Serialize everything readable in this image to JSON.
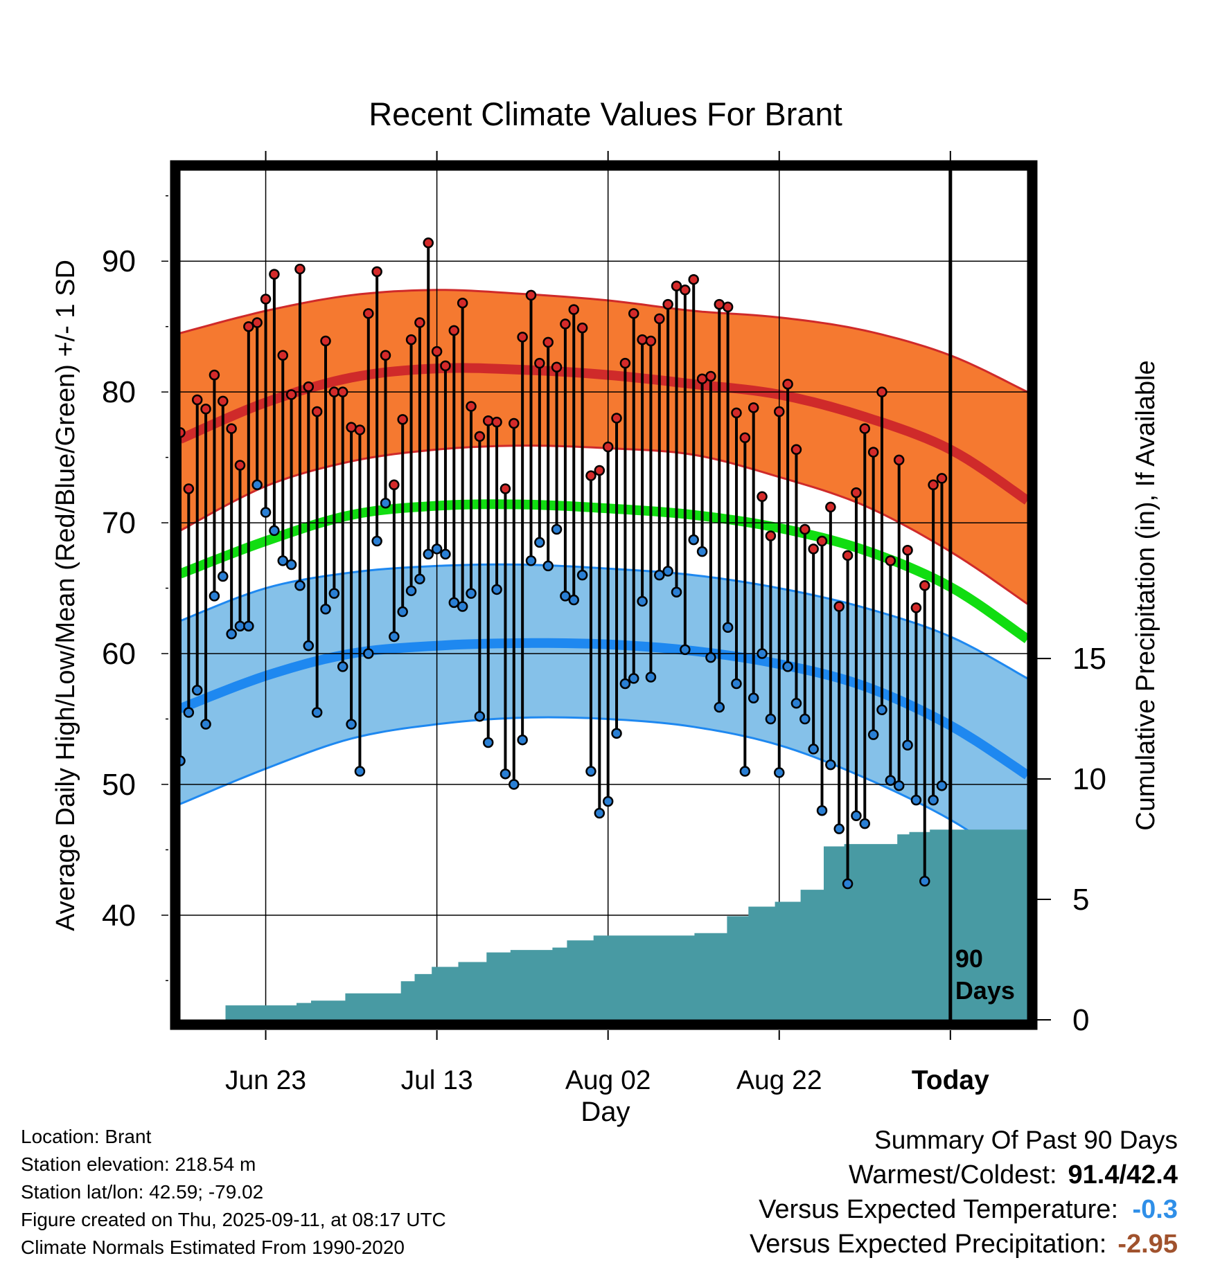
{
  "chart_data": {
    "type": "line",
    "title": "Recent Climate Values For Brant",
    "xlabel": "Day",
    "ylabel_left": "Average Daily High/Low/Mean (Red/Blue/Green) +/- 1 SD",
    "ylabel_right": "Cumulative Precipitation (in), If Available",
    "x_tick_labels": [
      "Jun 23",
      "Jul 13",
      "Aug 02",
      "Aug 22",
      "Today"
    ],
    "x_tick_days": [
      10,
      30,
      50,
      70,
      90
    ],
    "x_range": [
      0,
      99
    ],
    "ylim": [
      32,
      97
    ],
    "y_ticks": [
      40,
      50,
      60,
      70,
      80,
      90
    ],
    "y_right_ticks": [
      0,
      5,
      10,
      15
    ],
    "y_right_range": [
      0,
      35.3
    ],
    "today_marker": "90\nDays",
    "grid": true,
    "normals": {
      "days": [
        0,
        10,
        20,
        30,
        40,
        50,
        60,
        70,
        80,
        90,
        99
      ],
      "high_mean": [
        76.4,
        79.2,
        81.1,
        81.8,
        81.7,
        81.3,
        80.6,
        79.8,
        78.1,
        75.6,
        71.7
      ],
      "high_upper": [
        84.5,
        86.2,
        87.4,
        87.8,
        87.5,
        87.0,
        86.2,
        85.7,
        84.7,
        82.8,
        80.0
      ],
      "high_lower": [
        69.4,
        72.8,
        74.7,
        75.6,
        75.9,
        75.7,
        75.2,
        73.5,
        71.3,
        67.8,
        63.8
      ],
      "mean": [
        66.1,
        68.6,
        70.6,
        71.3,
        71.4,
        71.1,
        70.6,
        69.6,
        67.9,
        65.1,
        61.1
      ],
      "low_mean": [
        55.8,
        58.3,
        60.0,
        60.6,
        60.8,
        60.7,
        60.2,
        59.2,
        57.5,
        54.5,
        50.7
      ],
      "low_upper": [
        62.5,
        65.0,
        66.2,
        66.7,
        66.8,
        66.5,
        66.0,
        65.0,
        63.5,
        61.3,
        58.1
      ],
      "low_lower": [
        48.5,
        51.2,
        53.5,
        54.6,
        55.1,
        55.0,
        54.4,
        53.0,
        50.5,
        47.3,
        43.4
      ]
    },
    "series": [
      {
        "name": "High",
        "color": "#d42a2a",
        "values": [
          76.9,
          72.6,
          79.4,
          78.7,
          81.3,
          79.3,
          77.2,
          74.4,
          85.0,
          85.3,
          87.1,
          89.0,
          82.8,
          79.8,
          89.4,
          80.4,
          78.5,
          83.9,
          80.0,
          80.0,
          77.3,
          77.1,
          86.0,
          89.2,
          82.8,
          72.9,
          77.9,
          84.0,
          85.3,
          91.4,
          83.1,
          82.0,
          84.7,
          86.8,
          78.9,
          76.6,
          77.8,
          77.7,
          72.6,
          77.6,
          84.2,
          87.4,
          82.2,
          83.8,
          81.9,
          85.2,
          86.3,
          84.9,
          73.6,
          74.0,
          75.8,
          78.0,
          82.2,
          86.0,
          84.0,
          83.9,
          85.6,
          86.7,
          88.1,
          87.8,
          88.6,
          81.0,
          81.2,
          86.7,
          86.5,
          78.4,
          76.5,
          78.8,
          72.0,
          69.0,
          78.5,
          80.6,
          75.6,
          69.5,
          68.0,
          68.6,
          71.2,
          63.6,
          67.5,
          72.3,
          77.2,
          75.4,
          80.0,
          67.1,
          74.8,
          67.9,
          63.5,
          65.2,
          72.9,
          73.4
        ]
      },
      {
        "name": "Low",
        "color": "#2a7fd4",
        "values": [
          51.8,
          55.5,
          57.2,
          54.6,
          64.4,
          65.9,
          61.5,
          62.1,
          62.1,
          72.9,
          70.8,
          69.4,
          67.1,
          66.8,
          65.2,
          60.6,
          55.5,
          63.4,
          64.6,
          59.0,
          54.6,
          51.0,
          60.0,
          68.6,
          71.5,
          61.3,
          63.2,
          64.8,
          65.7,
          67.6,
          68.0,
          67.6,
          63.9,
          63.6,
          64.6,
          55.2,
          53.2,
          64.9,
          50.8,
          50.0,
          53.4,
          67.1,
          68.5,
          66.7,
          69.5,
          64.4,
          64.1,
          66.0,
          51.0,
          47.8,
          48.7,
          53.9,
          57.7,
          58.1,
          64.0,
          58.2,
          66.0,
          66.3,
          64.7,
          60.3,
          68.7,
          67.8,
          59.7,
          55.9,
          62.0,
          57.7,
          51.0,
          56.6,
          60.0,
          55.0,
          50.9,
          59.0,
          56.2,
          55.0,
          52.7,
          48.0,
          51.5,
          46.6,
          42.4,
          47.6,
          47.0,
          53.8,
          55.7,
          50.3,
          49.9,
          53.0,
          48.8,
          42.6,
          48.8,
          49.9
        ]
      },
      {
        "name": "Cumulative Precipitation",
        "color": "#489aa3",
        "step_days": [
          0,
          5.3,
          13.6,
          15.3,
          19.3,
          25.8,
          27.4,
          29.4,
          32.5,
          35.8,
          38.6,
          43.5,
          45.2,
          48.3,
          60.1,
          63.9,
          66.4,
          69.5,
          72.5,
          75.2,
          77.6,
          83.8,
          85.2,
          87.6,
          99
        ],
        "step_values": [
          0,
          0.6,
          0.7,
          0.8,
          1.1,
          1.6,
          1.9,
          2.2,
          2.4,
          2.8,
          2.9,
          3.0,
          3.3,
          3.5,
          3.6,
          4.3,
          4.7,
          4.9,
          5.4,
          7.2,
          7.3,
          7.7,
          7.8,
          7.9,
          7.9
        ]
      }
    ]
  },
  "info": {
    "location": "Location: Brant",
    "elevation": "Station elevation: 218.54 m",
    "latlon": "Station lat/lon: 42.59; -79.02",
    "created": "Figure created on Thu, 2025-09-11, at 08:17 UTC",
    "normals_note": "Climate Normals Estimated From 1990-2020"
  },
  "summary": {
    "heading": "Summary Of Past 90 Days",
    "warm_cold_label": "Warmest/Coldest:",
    "warm_cold_value": "91.4/42.4",
    "temp_label": "Versus Expected Temperature:",
    "temp_value": "-0.3",
    "temp_color": "#2f8fe8",
    "precip_label": "Versus Expected Precipitation:",
    "precip_value": "-2.95",
    "precip_color": "#a0522d"
  },
  "colors": {
    "high_band": "#f57930",
    "high_line": "#cf2a2a",
    "mean_line": "#11dd11",
    "low_band": "#85c1e9",
    "low_line": "#1e88f0",
    "precip_fill": "#489aa3"
  }
}
